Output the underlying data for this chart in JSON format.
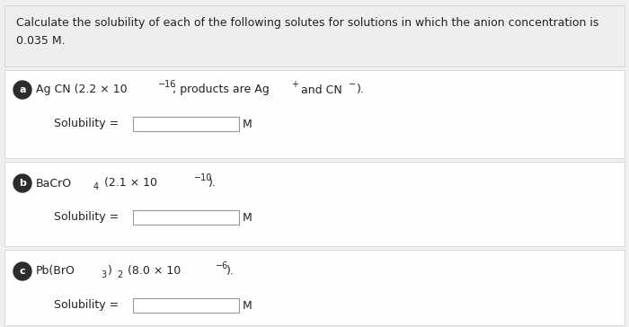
{
  "background_color": "#f2f0ee",
  "header_bg": "#f2f0ee",
  "section_bg": "#fafafa",
  "section_border": "#cccccc",
  "header_text_line1": "Calculate the solubility of each of the following solutes for solutions in which the anion concentration is",
  "header_text_line2": "0.035 M.",
  "label_a": "a",
  "label_b": "b",
  "label_c": "c",
  "circle_color": "#2c2c2c",
  "text_color": "#222222",
  "fontsize_main": 9.0,
  "fontsize_super": 7.0,
  "fontsize_header": 9.0
}
